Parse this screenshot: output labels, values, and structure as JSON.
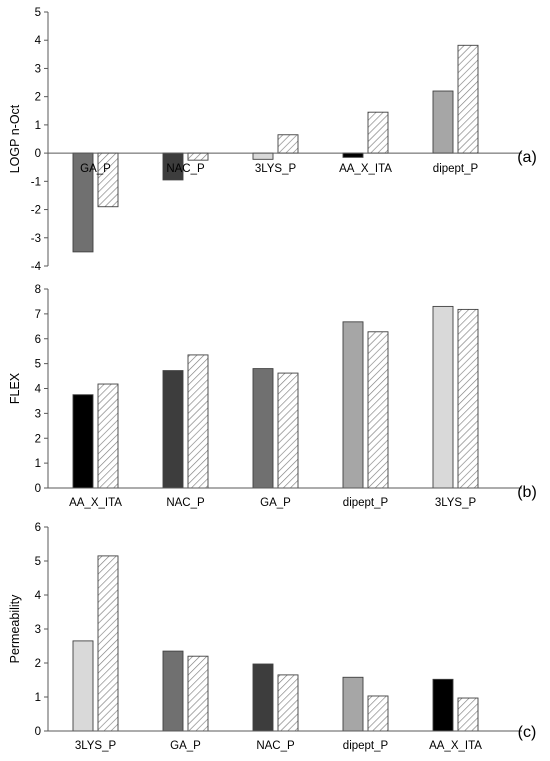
{
  "colors": {
    "black": "#000000",
    "dark_gray": "#3d3d3d",
    "mid_gray": "#707070",
    "gray": "#a6a6a6",
    "light_gray": "#d9d9d9",
    "hatch_pattern": "#7f7f7f"
  },
  "chart_data": [
    {
      "panel_label": "(a)",
      "type": "bar",
      "ylabel": "LOGP n-Oct",
      "ylim": [
        -4,
        5
      ],
      "yticks": [
        -4,
        -3,
        -2,
        -1,
        0,
        1,
        2,
        3,
        4,
        5
      ],
      "tick_labels": [
        "-4",
        "-3",
        "-2",
        "-1",
        "0",
        "1",
        "2",
        "3",
        "4",
        "5"
      ],
      "categories": [
        "GA_P",
        "NAC_P",
        "3LYS_P",
        "AA_X_ITA",
        "dipept_P"
      ],
      "category_colors": [
        "mid_gray",
        "dark_gray",
        "light_gray",
        "black",
        "gray"
      ],
      "series": [
        {
          "style": "solid",
          "values": [
            -3.5,
            -0.95,
            -0.22,
            -0.15,
            2.2
          ]
        },
        {
          "style": "hatched",
          "values": [
            -1.9,
            -0.25,
            0.65,
            1.45,
            3.82
          ]
        }
      ],
      "category_labels_at_zero": true,
      "grid": false
    },
    {
      "panel_label": "(b)",
      "type": "bar",
      "ylabel": "FLEX",
      "ylim": [
        0,
        8
      ],
      "yticks": [
        0,
        1,
        2,
        3,
        4,
        5,
        6,
        7,
        8
      ],
      "tick_labels": [
        "0",
        "1",
        "2",
        "3",
        "4",
        "5",
        "6",
        "7",
        "8"
      ],
      "categories": [
        "AA_X_ITA",
        "NAC_P",
        "GA_P",
        "dipept_P",
        "3LYS_P"
      ],
      "category_colors": [
        "black",
        "dark_gray",
        "mid_gray",
        "gray",
        "light_gray"
      ],
      "series": [
        {
          "style": "solid",
          "values": [
            3.75,
            4.72,
            4.8,
            6.68,
            7.3
          ]
        },
        {
          "style": "hatched",
          "values": [
            4.18,
            5.35,
            4.62,
            6.28,
            7.18
          ]
        }
      ],
      "category_labels_at_zero": false,
      "grid": false
    },
    {
      "panel_label": "(c)",
      "type": "bar",
      "ylabel": "Permeability",
      "ylim": [
        0,
        6
      ],
      "yticks": [
        0,
        1,
        2,
        3,
        4,
        5,
        6
      ],
      "tick_labels": [
        "0",
        "1",
        "2",
        "3",
        "4",
        "5",
        "6"
      ],
      "categories": [
        "3LYS_P",
        "GA_P",
        "NAC_P",
        "dipept_P",
        "AA_X_ITA"
      ],
      "category_colors": [
        "light_gray",
        "mid_gray",
        "dark_gray",
        "gray",
        "black"
      ],
      "series": [
        {
          "style": "solid",
          "values": [
            2.65,
            2.35,
            1.97,
            1.58,
            1.52
          ]
        },
        {
          "style": "hatched",
          "values": [
            5.15,
            2.2,
            1.65,
            1.03,
            0.97
          ]
        }
      ],
      "category_labels_at_zero": false,
      "grid": false
    }
  ]
}
